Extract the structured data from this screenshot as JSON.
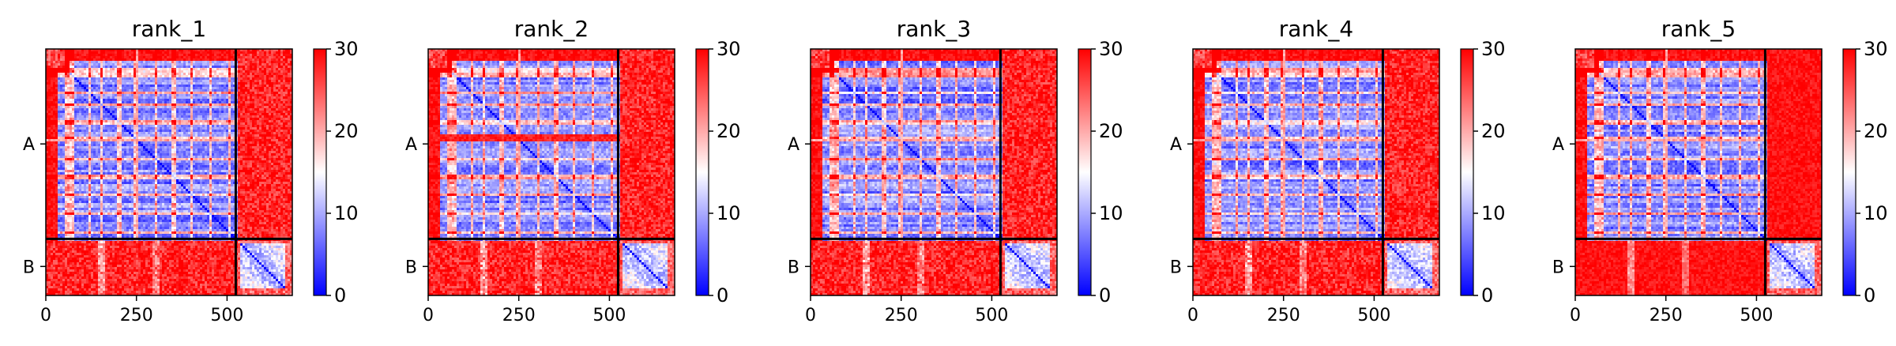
{
  "chart_data": [
    {
      "type": "heatmap",
      "title": "rank_1",
      "xticks": [
        0,
        250,
        500
      ],
      "yticks": [
        {
          "label": "A",
          "pos": 262
        },
        {
          "label": "B",
          "pos": 600
        }
      ],
      "chain_boundary": 524,
      "residues": 680,
      "colorbar": {
        "range": [
          0,
          30
        ],
        "ticks": [
          0,
          10,
          20,
          30
        ],
        "colors": [
          "#0000ff",
          "#ffffff",
          "#ff0000"
        ]
      },
      "variant": 0
    },
    {
      "type": "heatmap",
      "title": "rank_2",
      "xticks": [
        0,
        250,
        500
      ],
      "yticks": [
        {
          "label": "A",
          "pos": 262
        },
        {
          "label": "B",
          "pos": 600
        }
      ],
      "chain_boundary": 524,
      "residues": 680,
      "colorbar": {
        "range": [
          0,
          30
        ],
        "ticks": [
          0,
          10,
          20,
          30
        ],
        "colors": [
          "#0000ff",
          "#ffffff",
          "#ff0000"
        ]
      },
      "variant": 1
    },
    {
      "type": "heatmap",
      "title": "rank_3",
      "xticks": [
        0,
        250,
        500
      ],
      "yticks": [
        {
          "label": "A",
          "pos": 262
        },
        {
          "label": "B",
          "pos": 600
        }
      ],
      "chain_boundary": 524,
      "residues": 680,
      "colorbar": {
        "range": [
          0,
          30
        ],
        "ticks": [
          0,
          10,
          20,
          30
        ],
        "colors": [
          "#0000ff",
          "#ffffff",
          "#ff0000"
        ]
      },
      "variant": 2
    },
    {
      "type": "heatmap",
      "title": "rank_4",
      "xticks": [
        0,
        250,
        500
      ],
      "yticks": [
        {
          "label": "A",
          "pos": 262
        },
        {
          "label": "B",
          "pos": 600
        }
      ],
      "chain_boundary": 524,
      "residues": 680,
      "colorbar": {
        "range": [
          0,
          30
        ],
        "ticks": [
          0,
          10,
          20,
          30
        ],
        "colors": [
          "#0000ff",
          "#ffffff",
          "#ff0000"
        ]
      },
      "variant": 3
    },
    {
      "type": "heatmap",
      "title": "rank_5",
      "xticks": [
        0,
        250,
        500
      ],
      "yticks": [
        {
          "label": "A",
          "pos": 262
        },
        {
          "label": "B",
          "pos": 600
        }
      ],
      "chain_boundary": 524,
      "residues": 680,
      "colorbar": {
        "range": [
          0,
          30
        ],
        "ticks": [
          0,
          10,
          20,
          30
        ],
        "colors": [
          "#0000ff",
          "#ffffff",
          "#ff0000"
        ]
      },
      "variant": 4
    }
  ]
}
